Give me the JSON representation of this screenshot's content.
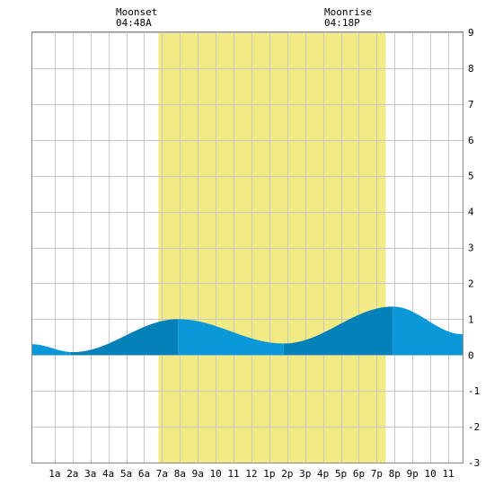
{
  "moonset": {
    "label": "Moonset",
    "time": "04:48A"
  },
  "moonrise": {
    "label": "Moonrise",
    "time": "04:18P"
  },
  "chart_data": {
    "type": "area",
    "xlabel": "",
    "ylabel": "",
    "xlim": [
      -0.25,
      23.8
    ],
    "ylim": [
      -3,
      9
    ],
    "y_ticks": [
      -3,
      -2,
      -1,
      0,
      1,
      2,
      3,
      4,
      5,
      6,
      7,
      8,
      9
    ],
    "x_tick_labels": [
      {
        "x": 1,
        "label": "1a"
      },
      {
        "x": 2,
        "label": "2a"
      },
      {
        "x": 3,
        "label": "3a"
      },
      {
        "x": 4,
        "label": "4a"
      },
      {
        "x": 5,
        "label": "5a"
      },
      {
        "x": 6,
        "label": "6a"
      },
      {
        "x": 7,
        "label": "7a"
      },
      {
        "x": 8,
        "label": "8a"
      },
      {
        "x": 9,
        "label": "9a"
      },
      {
        "x": 10,
        "label": "10"
      },
      {
        "x": 11,
        "label": "11"
      },
      {
        "x": 12,
        "label": "12"
      },
      {
        "x": 13,
        "label": "1p"
      },
      {
        "x": 14,
        "label": "2p"
      },
      {
        "x": 15,
        "label": "3p"
      },
      {
        "x": 16,
        "label": "4p"
      },
      {
        "x": 17,
        "label": "5p"
      },
      {
        "x": 18,
        "label": "6p"
      },
      {
        "x": 19,
        "label": "7p"
      },
      {
        "x": 20,
        "label": "8p"
      },
      {
        "x": 21,
        "label": "9p"
      },
      {
        "x": 22,
        "label": "10"
      },
      {
        "x": 23,
        "label": "11"
      }
    ],
    "grid": true,
    "daylight_band": {
      "start": 6.8,
      "end": 19.5,
      "color": "#f2ea82"
    },
    "tide_extrema": [
      {
        "x": -0.25,
        "y": 0.3
      },
      {
        "x": 2.0,
        "y": 0.08
      },
      {
        "x": 7.9,
        "y": 1.0
      },
      {
        "x": 13.8,
        "y": 0.32
      },
      {
        "x": 19.9,
        "y": 1.35
      },
      {
        "x": 23.8,
        "y": 0.58
      }
    ],
    "shading_segments": [
      {
        "start": -0.25,
        "end": 1.9,
        "shade": "light"
      },
      {
        "start": 1.9,
        "end": 7.9,
        "shade": "dark"
      },
      {
        "start": 7.9,
        "end": 13.8,
        "shade": "light"
      },
      {
        "start": 13.8,
        "end": 19.9,
        "shade": "dark"
      },
      {
        "start": 19.9,
        "end": 23.8,
        "shade": "light"
      }
    ],
    "colors": {
      "light": "#0a98d8",
      "dark": "#0581b9",
      "grid": "#c8c8c8",
      "frame": "#888888"
    }
  }
}
